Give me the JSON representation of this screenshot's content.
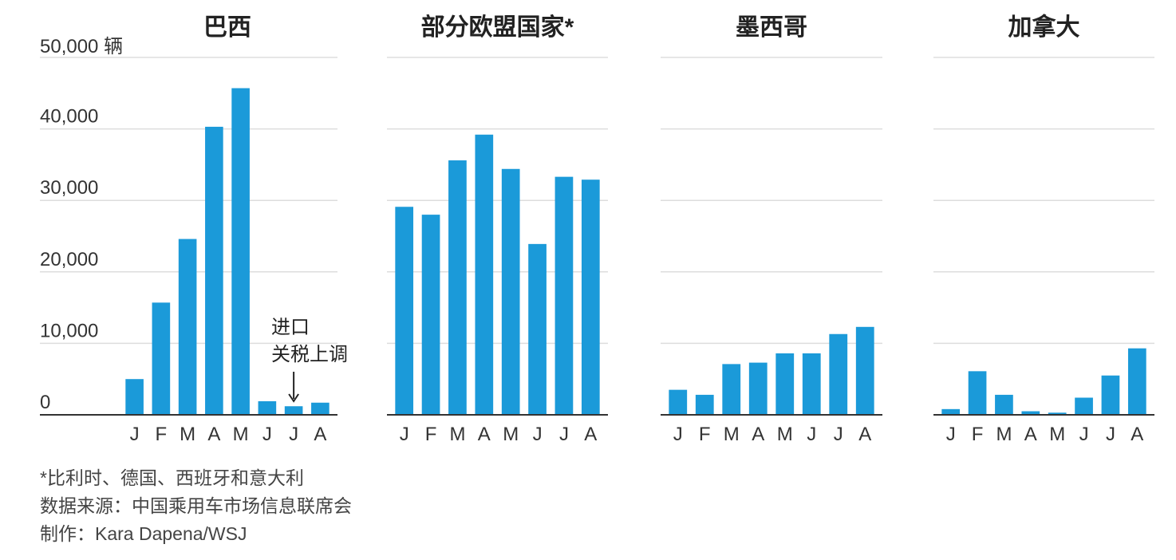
{
  "chart_data": {
    "type": "bar",
    "unit_label": "50,000 辆",
    "y_ticks": [
      "0",
      "10,000",
      "20,000",
      "30,000",
      "40,000"
    ],
    "ylim": [
      0,
      50000
    ],
    "grid": true,
    "bar_color": "#1b9ad9",
    "categories": [
      "J",
      "F",
      "M",
      "A",
      "M",
      "J",
      "J",
      "A"
    ],
    "panels": [
      {
        "title": "巴西",
        "values": [
          5000,
          15700,
          24600,
          40300,
          45700,
          1900,
          1200,
          1700
        ]
      },
      {
        "title": "部分欧盟国家*",
        "values": [
          29100,
          28000,
          35600,
          39200,
          34400,
          23900,
          33300,
          32900
        ]
      },
      {
        "title": "墨西哥",
        "values": [
          3500,
          2800,
          7100,
          7300,
          8600,
          8600,
          11300,
          12300
        ]
      },
      {
        "title": "加拿大",
        "values": [
          800,
          6100,
          2800,
          500,
          300,
          2400,
          5500,
          9300
        ]
      }
    ],
    "annotation": {
      "lines": [
        "进口",
        "关税上调"
      ]
    }
  },
  "footnotes": {
    "note": "*比利时、德国、西班牙和意大利",
    "source": "数据来源：中国乘用车市场信息联席会",
    "credit": "制作：Kara Dapena/WSJ"
  }
}
